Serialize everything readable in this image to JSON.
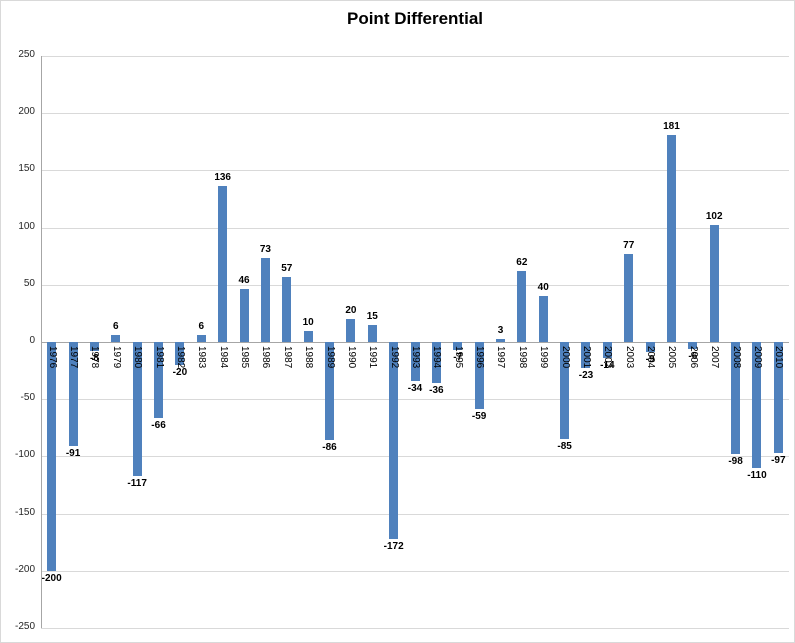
{
  "chart_data": {
    "type": "bar",
    "title": "Point Differential",
    "categories": [
      "1976",
      "1977",
      "1978",
      "1979",
      "1980",
      "1981",
      "1982",
      "1983",
      "1984",
      "1985",
      "1986",
      "1987",
      "1988",
      "1989",
      "1990",
      "1991",
      "1992",
      "1993",
      "1994",
      "1995",
      "1996",
      "1997",
      "1998",
      "1999",
      "2000",
      "2001",
      "2002",
      "2003",
      "2004",
      "2005",
      "2006",
      "2007",
      "2008",
      "2009",
      "2010"
    ],
    "values": [
      -200,
      -91,
      -8,
      6,
      -117,
      -66,
      -20,
      6,
      136,
      46,
      73,
      57,
      10,
      -86,
      20,
      15,
      -172,
      -34,
      -36,
      -7,
      -59,
      3,
      62,
      40,
      -85,
      -23,
      -14,
      77,
      -9,
      181,
      -6,
      102,
      -98,
      -110,
      -97
    ],
    "xlabel": "",
    "ylabel": "",
    "ylim": [
      -250,
      250
    ],
    "y_ticks": [
      250,
      200,
      150,
      100,
      50,
      0,
      -50,
      -100,
      -150,
      -200,
      -250
    ],
    "grid": true,
    "legend": "none",
    "bar_color": "#4F81BD",
    "x_tick_rotation": 90,
    "data_labels": true
  }
}
